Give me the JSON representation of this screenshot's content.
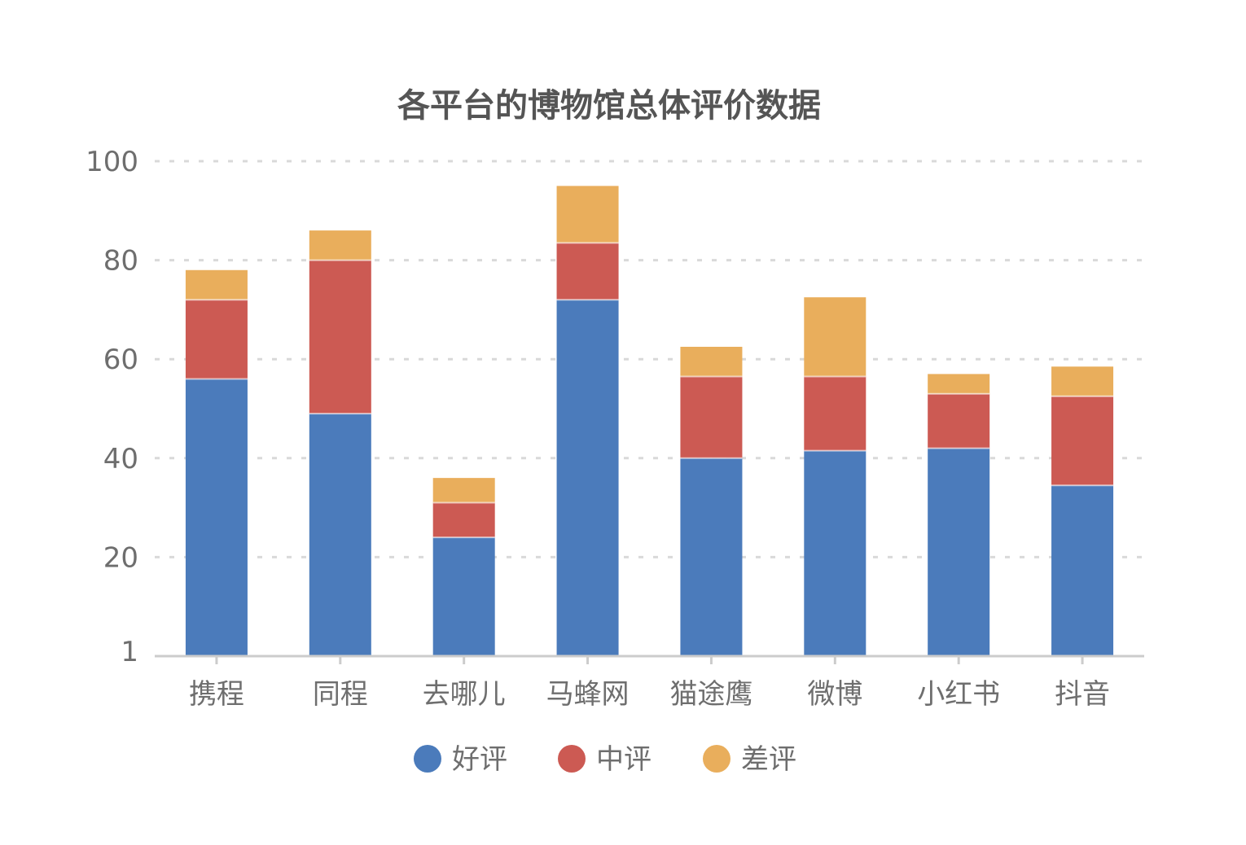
{
  "chart_data": {
    "type": "bar",
    "stacked": true,
    "title": "各平台的博物馆总体评价数据",
    "xlabel": "",
    "ylabel": "",
    "ylim": [
      0,
      100
    ],
    "y_ticks": [
      1,
      20,
      40,
      60,
      80,
      100
    ],
    "grid": true,
    "legend_position": "bottom",
    "categories": [
      "携程",
      "同程",
      "去哪儿",
      "马蜂网",
      "猫途鹰",
      "微博",
      "小红书",
      "抖音"
    ],
    "series": [
      {
        "name": "好评",
        "color": "#4b7bbb",
        "values": [
          56,
          49,
          24,
          72,
          40,
          41.5,
          42,
          34.5
        ]
      },
      {
        "name": "中评",
        "color": "#cc5a53",
        "values": [
          16,
          31,
          7,
          11.5,
          16.5,
          15,
          11,
          18
        ]
      },
      {
        "name": "差评",
        "color": "#e9ae5c",
        "values": [
          6,
          6,
          5,
          11.5,
          6,
          16,
          4,
          6
        ]
      }
    ]
  }
}
